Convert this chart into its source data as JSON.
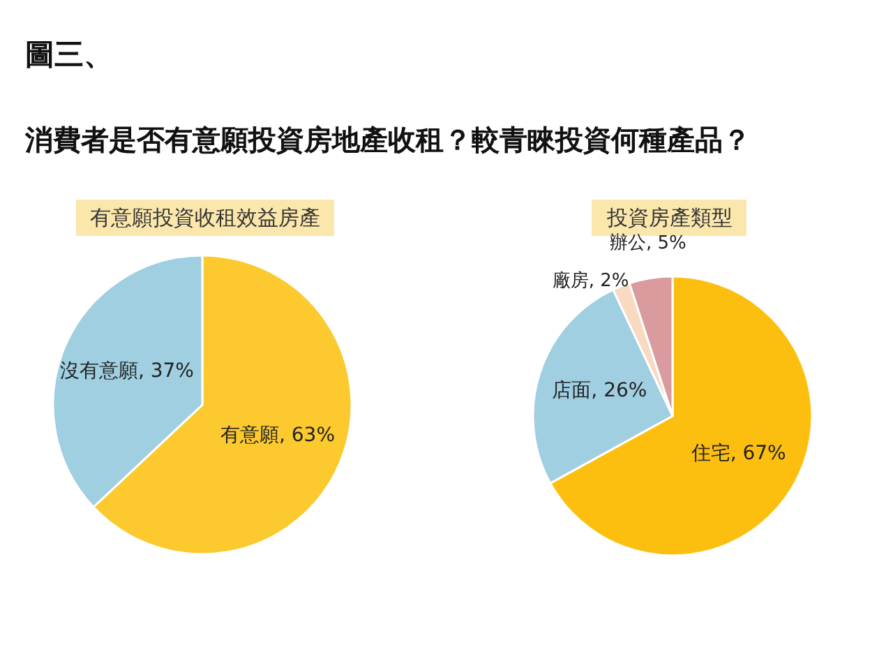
{
  "chart_data": [
    {
      "type": "pie",
      "title": "有意願投資收租效益房產",
      "annotations": [
        "圖三、",
        "消費者是否有意願投資房地產收租？較青睞投資何種產品？"
      ],
      "categories": [
        "有意願",
        "沒有意願"
      ],
      "values": [
        63,
        37
      ],
      "value_labels": [
        "63%",
        "37%"
      ],
      "colors": [
        "#fcc92f",
        "#9fcfe0"
      ]
    },
    {
      "type": "pie",
      "title": "投資房產類型",
      "categories": [
        "住宅",
        "店面",
        "廠房",
        "辦公"
      ],
      "values": [
        67,
        26,
        2,
        5
      ],
      "value_labels": [
        "67%",
        "26%",
        "2%",
        "5%"
      ],
      "colors": [
        "#fdbf0f",
        "#a0cfe2",
        "#f9d9c2",
        "#d99b9d"
      ]
    }
  ]
}
